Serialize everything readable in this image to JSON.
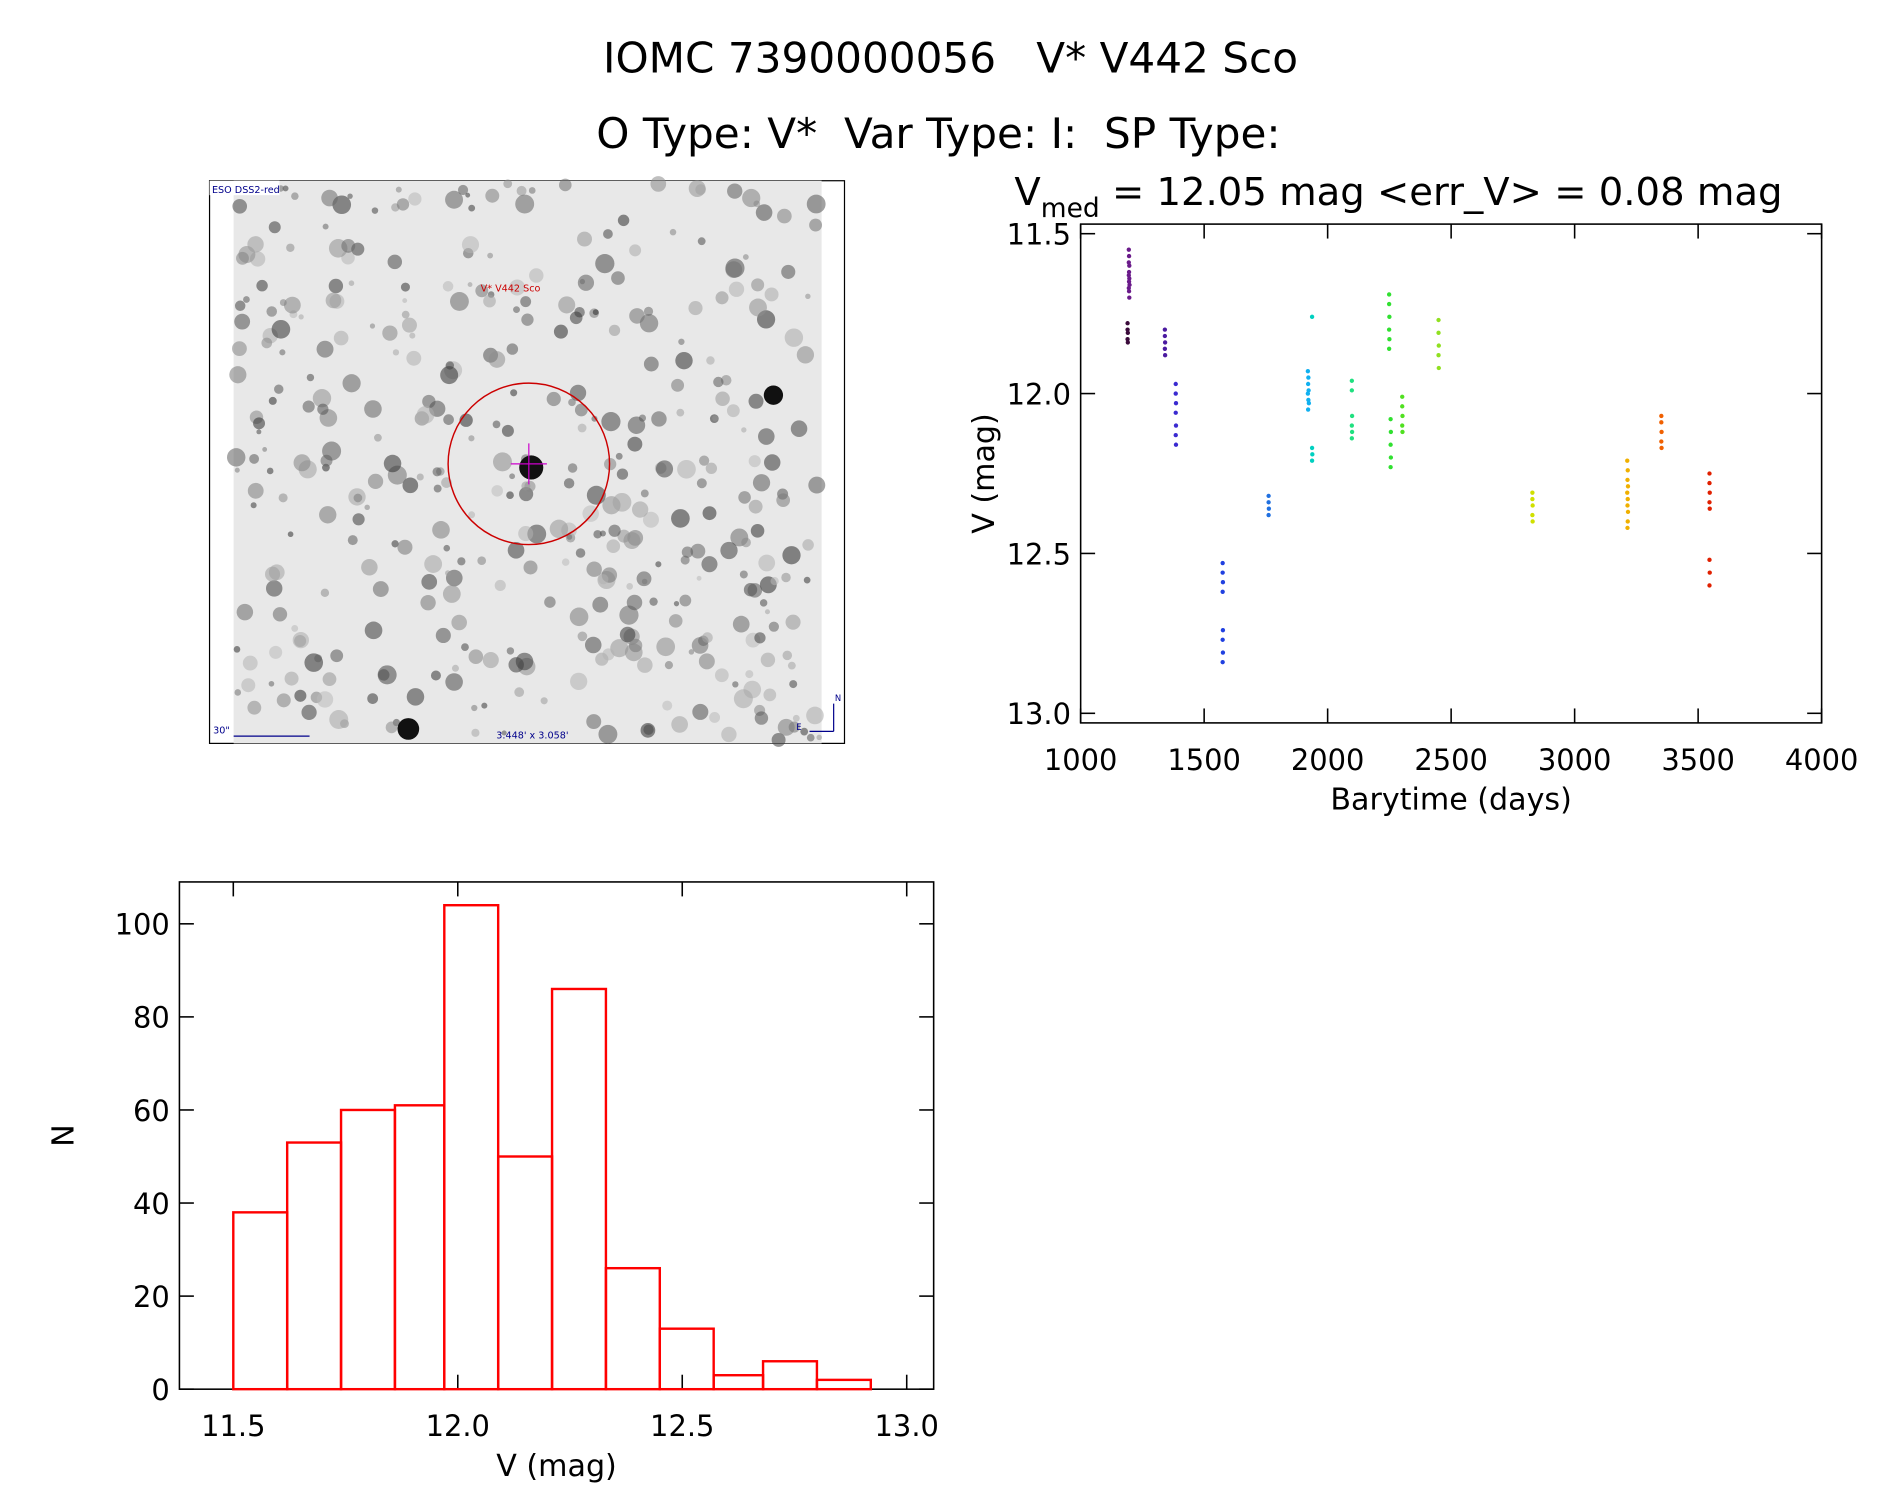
{
  "header": {
    "title": "IOMC 7390000056   V* V442 Sco",
    "subtitle": "O Type: V*  Var Type: I:  SP Type:"
  },
  "image": {
    "survey": "ESO DSS2-red",
    "target": "V* V442 Sco",
    "scale": "30\"",
    "field": "3.448' x 3.058'",
    "north": "N",
    "east": "E"
  },
  "chart_data": [
    {
      "type": "scatter",
      "title_parts": [
        "V",
        "med",
        " = 12.05 mag <err_V> = 0.08 mag"
      ],
      "x_label": "Barytime (days)",
      "y_label": "V (mag)",
      "xlim": [
        1000,
        4000
      ],
      "ylim": [
        13.03,
        11.47
      ],
      "xticks": [
        1000,
        1500,
        2000,
        2500,
        3000,
        3500,
        4000
      ],
      "yticks": [
        11.5,
        {
          "value": 12.0,
          "label": "12.0"
        },
        12.5,
        {
          "value": 13.0,
          "label": "13.0"
        }
      ],
      "series": [
        {
          "color": "#3a0a3a",
          "x": [
            1190,
            1190,
            1191,
            1190,
            1191
          ],
          "values": [
            11.78,
            11.8,
            11.81,
            11.83,
            11.84
          ]
        },
        {
          "color": "#6a1a8a",
          "x": [
            1195,
            1196,
            1195,
            1197,
            1196,
            1195,
            1197,
            1196,
            1198,
            1195,
            1196,
            1197
          ],
          "values": [
            11.55,
            11.57,
            11.59,
            11.6,
            11.62,
            11.63,
            11.64,
            11.65,
            11.66,
            11.67,
            11.68,
            11.7
          ]
        },
        {
          "color": "#4b1aa0",
          "x": [
            1341,
            1341,
            1342,
            1341,
            1342
          ],
          "values": [
            11.8,
            11.82,
            11.84,
            11.86,
            11.88
          ]
        },
        {
          "color": "#3a2ad0",
          "x": [
            1385,
            1385,
            1386,
            1385,
            1386,
            1385,
            1386
          ],
          "values": [
            11.97,
            12.0,
            12.03,
            12.06,
            12.1,
            12.13,
            12.16
          ]
        },
        {
          "color": "#2040e0",
          "x": [
            1575,
            1575,
            1576,
            1575,
            1576,
            1575,
            1576,
            1575
          ],
          "values": [
            12.53,
            12.56,
            12.59,
            12.62,
            12.74,
            12.77,
            12.81,
            12.84
          ]
        },
        {
          "color": "#2070e0",
          "x": [
            1761,
            1761,
            1762,
            1761
          ],
          "values": [
            12.32,
            12.34,
            12.36,
            12.38
          ]
        },
        {
          "color": "#10b0f0",
          "x": [
            1920,
            1922,
            1921,
            1923,
            1920,
            1922,
            1924,
            1921
          ],
          "values": [
            11.93,
            11.95,
            11.97,
            11.99,
            12.0,
            12.02,
            12.03,
            12.05
          ]
        },
        {
          "color": "#00d0c0",
          "x": [
            1937,
            1937,
            1938,
            1937
          ],
          "values": [
            11.76,
            12.17,
            12.19,
            12.21
          ]
        },
        {
          "color": "#20e080",
          "x": [
            2098,
            2098,
            2099,
            2098,
            2099,
            2098
          ],
          "values": [
            11.96,
            11.99,
            12.07,
            12.1,
            12.12,
            12.14
          ]
        },
        {
          "color": "#30e030",
          "x": [
            2249,
            2249,
            2250,
            2249,
            2250,
            2249,
            2255,
            2256,
            2255,
            2256,
            2255
          ],
          "values": [
            11.69,
            11.72,
            11.76,
            11.8,
            11.83,
            11.86,
            12.08,
            12.12,
            12.16,
            12.2,
            12.23
          ]
        },
        {
          "color": "#50e020",
          "x": [
            2302,
            2302,
            2303,
            2302,
            2303
          ],
          "values": [
            12.01,
            12.04,
            12.07,
            12.1,
            12.12
          ]
        },
        {
          "color": "#90e020",
          "x": [
            2449,
            2449,
            2450,
            2449,
            2450
          ],
          "values": [
            11.77,
            11.81,
            11.85,
            11.88,
            11.92
          ]
        },
        {
          "color": "#d0e000",
          "x": [
            2829,
            2829,
            2830,
            2829,
            2830
          ],
          "values": [
            12.31,
            12.33,
            12.35,
            12.38,
            12.4
          ]
        },
        {
          "color": "#f0b000",
          "x": [
            3213,
            3215,
            3214,
            3216,
            3213,
            3215,
            3214,
            3216,
            3215,
            3214
          ],
          "values": [
            12.21,
            12.24,
            12.27,
            12.29,
            12.31,
            12.33,
            12.35,
            12.37,
            12.4,
            12.42
          ]
        },
        {
          "color": "#f06000",
          "x": [
            3351,
            3351,
            3352,
            3351,
            3352
          ],
          "values": [
            12.07,
            12.09,
            12.12,
            12.15,
            12.17
          ]
        },
        {
          "color": "#e02000",
          "x": [
            3546,
            3546,
            3547,
            3546,
            3547,
            3546,
            3547,
            3546
          ],
          "values": [
            12.25,
            12.28,
            12.31,
            12.34,
            12.36,
            12.52,
            12.56,
            12.6
          ]
        }
      ]
    },
    {
      "type": "histogram",
      "x_label": "V (mag)",
      "y_label": "N",
      "color": "#ff0000",
      "bins": [
        11.5,
        11.62,
        11.74,
        11.86,
        11.97,
        12.09,
        12.21,
        12.33,
        12.45,
        12.57,
        12.68,
        12.8,
        12.92
      ],
      "values": [
        38,
        53,
        60,
        61,
        104,
        50,
        86,
        26,
        13,
        3,
        6,
        2
      ],
      "xlim": [
        11.38,
        13.06
      ],
      "ylim": [
        0,
        109
      ],
      "xticks": [
        11.5,
        {
          "value": 12.0,
          "label": "12.0"
        },
        12.5,
        {
          "value": 13.0,
          "label": "13.0"
        }
      ],
      "yticks": [
        0,
        20,
        40,
        60,
        80,
        100
      ]
    }
  ]
}
